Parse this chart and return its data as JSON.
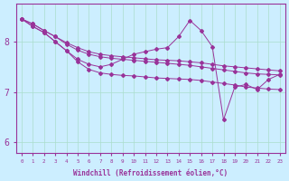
{
  "xlabel": "Windchill (Refroidissement éolien,°C)",
  "background_color": "#cceeff",
  "line_color": "#993399",
  "xlim": [
    -0.5,
    23.5
  ],
  "ylim": [
    5.8,
    8.75
  ],
  "xticks": [
    0,
    1,
    2,
    3,
    4,
    5,
    6,
    7,
    8,
    9,
    10,
    11,
    12,
    13,
    14,
    15,
    16,
    17,
    18,
    19,
    20,
    21,
    22,
    23
  ],
  "yticks": [
    6,
    7,
    8
  ],
  "grid_color": "#aaddcc",
  "series": [
    [
      8.45,
      8.35,
      8.22,
      8.1,
      7.98,
      7.88,
      7.8,
      7.75,
      7.72,
      7.7,
      7.68,
      7.66,
      7.64,
      7.63,
      7.62,
      7.6,
      7.58,
      7.55,
      7.52,
      7.5,
      7.48,
      7.46,
      7.44,
      7.42
    ],
    [
      8.45,
      8.35,
      8.22,
      8.1,
      7.95,
      7.83,
      7.75,
      7.7,
      7.67,
      7.65,
      7.63,
      7.61,
      7.59,
      7.57,
      7.55,
      7.53,
      7.5,
      7.47,
      7.44,
      7.41,
      7.38,
      7.36,
      7.35,
      7.34
    ],
    [
      8.45,
      8.3,
      8.18,
      8.0,
      7.82,
      7.65,
      7.55,
      7.5,
      7.55,
      7.65,
      7.75,
      7.8,
      7.85,
      7.88,
      8.1,
      8.42,
      8.22,
      7.9,
      6.45,
      7.1,
      7.15,
      7.05,
      7.25,
      7.35
    ],
    [
      8.45,
      8.3,
      8.18,
      8.0,
      7.82,
      7.6,
      7.45,
      7.38,
      7.35,
      7.33,
      7.32,
      7.3,
      7.28,
      7.27,
      7.26,
      7.25,
      7.23,
      7.2,
      7.17,
      7.14,
      7.1,
      7.08,
      7.06,
      7.05
    ]
  ]
}
